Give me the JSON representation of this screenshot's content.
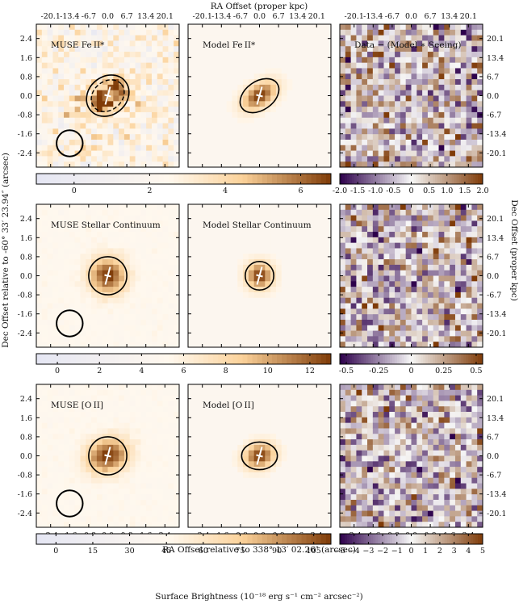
{
  "chart_data": {
    "type": "heatmap",
    "top_axis_label": "RA Offset (proper kpc)",
    "bottom_axis_label": "RA Offset relative to 338° 13′ 02.26″ (arcsec)",
    "left_axis_label": "Dec Offset relative to -60° 33′ 23.94″ (arcsec)",
    "right_axis_label": "Dec Offset (proper kpc)",
    "colorbar_label": "Surface Brightness (10⁻¹⁸ erg s⁻¹ cm⁻² arcsec⁻²)",
    "xlim": [
      -3,
      3
    ],
    "ylim": [
      -3,
      3
    ],
    "arcsec_ticks": [
      "-2.4",
      "-1.6",
      "-0.8",
      "0.0",
      "0.8",
      "1.6",
      "2.4"
    ],
    "kpc_ticks": [
      "-20.1",
      "-13.4",
      "-6.7",
      "0.0",
      "6.7",
      "13.4",
      "20.1"
    ],
    "grid": false,
    "rows": [
      {
        "name": "FeII*",
        "panels": [
          {
            "title": "MUSE Fe II*",
            "kind": "data"
          },
          {
            "title": "Model Fe II*",
            "kind": "model"
          },
          {
            "title": "Data − (Model ∗ Seeing)",
            "kind": "residual"
          }
        ],
        "source_model": {
          "sx": 0.55,
          "sy": 0.32,
          "angle_deg": 35,
          "x0": 0.0,
          "y0": 0.0
        },
        "ellipse": {
          "rx": 0.9,
          "ry": 0.6,
          "angle_deg": 35
        },
        "data_ellipse": {
          "rx": 0.95,
          "ry": 0.8,
          "angle_deg": 40
        },
        "seeing_circle_diameter": 0.55,
        "cbar_main": {
          "range": [
            -1.0,
            6.8
          ],
          "ticks": [
            "0",
            "2",
            "4",
            "6"
          ],
          "tick_values": [
            0,
            2,
            4,
            6
          ]
        },
        "cbar_resid": {
          "range": [
            -2.0,
            2.0
          ],
          "ticks": [
            "-2.0",
            "-1.5",
            "-1.0",
            "-0.5",
            "0",
            "0.5",
            "1.0",
            "1.5",
            "2.0"
          ],
          "tick_values": [
            -2.0,
            -1.5,
            -1.0,
            -0.5,
            0,
            0.5,
            1.0,
            1.5,
            2.0
          ]
        }
      },
      {
        "name": "Continuum",
        "panels": [
          {
            "title": "MUSE Stellar Continuum",
            "kind": "data"
          },
          {
            "title": "Model Stellar Continuum",
            "kind": "model"
          },
          {
            "title": "",
            "kind": "residual"
          }
        ],
        "source_model": {
          "sx": 0.38,
          "sy": 0.38,
          "angle_deg": 0,
          "x0": 0.0,
          "y0": 0.0
        },
        "ellipse": {
          "rx": 0.6,
          "ry": 0.6,
          "angle_deg": 0
        },
        "data_ellipse": {
          "rx": 0.8,
          "ry": 0.8,
          "angle_deg": 0
        },
        "seeing_circle_diameter": 0.55,
        "cbar_main": {
          "range": [
            -1.0,
            13.0
          ],
          "ticks": [
            "0",
            "2",
            "4",
            "6",
            "8",
            "10",
            "12"
          ],
          "tick_values": [
            0,
            2,
            4,
            6,
            8,
            10,
            12
          ]
        },
        "cbar_resid": {
          "range": [
            -0.55,
            0.55
          ],
          "ticks": [
            "-0.5",
            "-0.25",
            "0",
            "0.25",
            "0.5"
          ],
          "tick_values": [
            -0.5,
            -0.25,
            0,
            0.25,
            0.5
          ]
        }
      },
      {
        "name": "OII",
        "panels": [
          {
            "title": "MUSE [O II]",
            "kind": "data"
          },
          {
            "title": "Model [O II]",
            "kind": "model"
          },
          {
            "title": "",
            "kind": "residual"
          }
        ],
        "source_model": {
          "sx": 0.45,
          "sy": 0.35,
          "angle_deg": 20,
          "x0": 0.0,
          "y0": 0.0
        },
        "ellipse": {
          "rx": 0.75,
          "ry": 0.58,
          "angle_deg": 0
        },
        "data_ellipse": {
          "rx": 0.8,
          "ry": 0.8,
          "angle_deg": 0
        },
        "seeing_circle_diameter": 0.55,
        "cbar_main": {
          "range": [
            -8,
            112
          ],
          "ticks": [
            "0",
            "15",
            "30",
            "45",
            "60",
            "75",
            "90",
            "105"
          ],
          "tick_values": [
            0,
            15,
            30,
            45,
            60,
            75,
            90,
            105
          ]
        },
        "cbar_resid": {
          "range": [
            -5,
            5
          ],
          "ticks": [
            "−5",
            "−4",
            "−3",
            "−2",
            "−1",
            "0",
            "1",
            "2",
            "3",
            "4",
            "5"
          ],
          "tick_values": [
            -5,
            -4,
            -3,
            -2,
            -1,
            0,
            1,
            2,
            3,
            4,
            5
          ]
        }
      }
    ],
    "colors": {
      "low": "#e4e6f3",
      "mid": "#fbd29a",
      "high": "#7f3b08",
      "resid_neg": "#2d004b",
      "resid_mid": "#f7f7f7",
      "resid_pos": "#7f3b08",
      "marker": "#ffffff"
    }
  }
}
